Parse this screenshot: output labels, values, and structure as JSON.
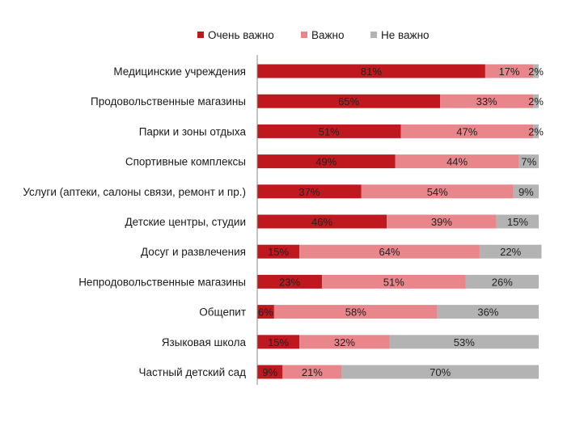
{
  "chart_data": {
    "type": "bar",
    "orientation": "horizontal",
    "stacked": true,
    "percent_stacked": true,
    "xlim": [
      0,
      100
    ],
    "grid": false,
    "legend_position": "top",
    "categories": [
      "Медицинские учреждения",
      "Продовольственные магазины",
      "Парки и зоны отдыха",
      "Спортивные комплексы",
      "Услуги (аптеки, салоны связи, ремонт и пр.)",
      "Детские центры, студии",
      "Досуг и развлечения",
      "Непродовольственные магазины",
      "Общепит",
      "Языковая школа",
      "Частный детский сад"
    ],
    "series": [
      {
        "name": "Очень важно",
        "color": "#c0181f",
        "values": [
          81,
          65,
          51,
          49,
          37,
          46,
          15,
          23,
          6,
          15,
          9
        ],
        "labels": [
          "81%",
          "65%",
          "51%",
          "49%",
          "37%",
          "46%",
          "15%",
          "23%",
          "6%",
          "15%",
          "9%"
        ]
      },
      {
        "name": "Важно",
        "color": "#e8868c",
        "values": [
          17,
          33,
          47,
          44,
          54,
          39,
          64,
          51,
          58,
          32,
          21
        ],
        "labels": [
          "17%",
          "33%",
          "47%",
          "44%",
          "54%",
          "39%",
          "64%",
          "51%",
          "58%",
          "32%",
          "21%"
        ]
      },
      {
        "name": "Не важно",
        "color": "#b3b3b3",
        "values": [
          2,
          2,
          2,
          7,
          9,
          15,
          22,
          26,
          36,
          53,
          70
        ],
        "labels": [
          "2%",
          "2%",
          "2%",
          "7%",
          "9%",
          "15%",
          "22%",
          "26%",
          "36%",
          "53%",
          "70%"
        ]
      }
    ]
  }
}
